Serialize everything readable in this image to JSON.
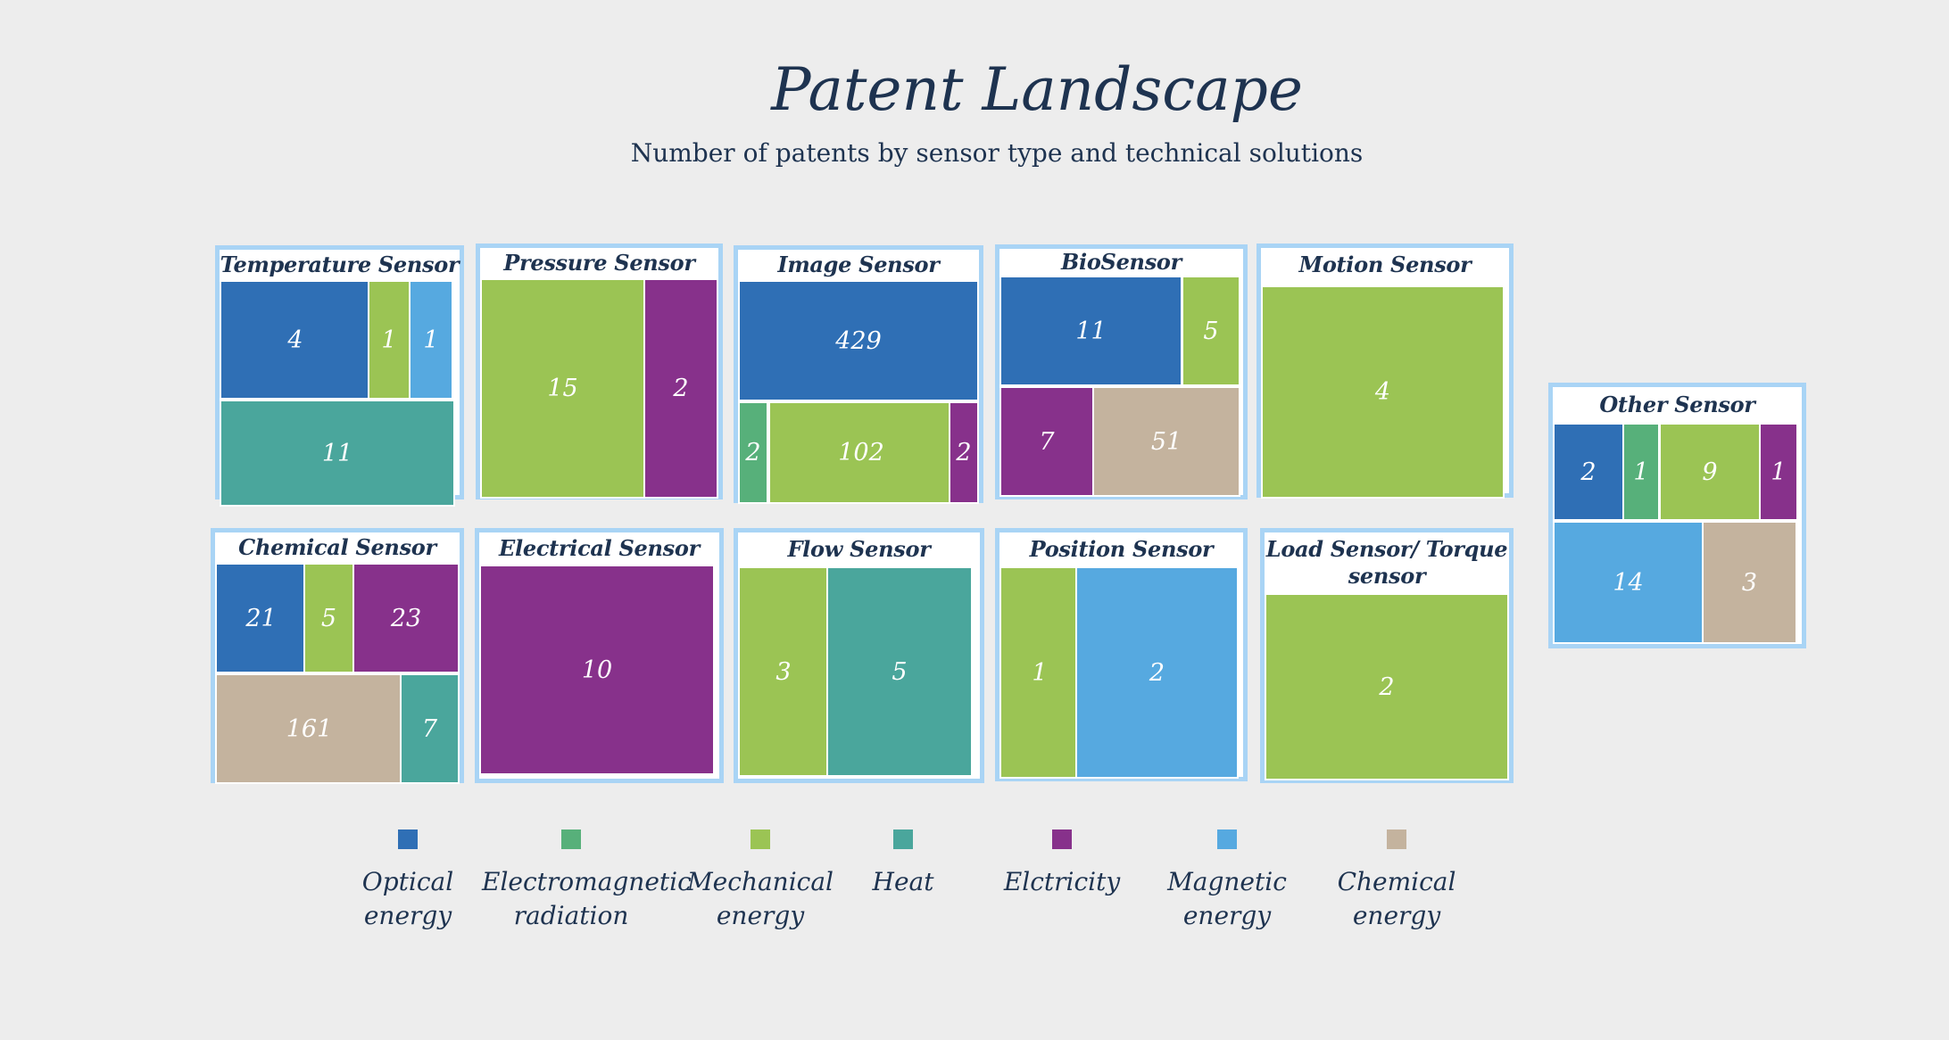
{
  "chart_data": {
    "type": "treemap",
    "title": "Patent Landscape",
    "subtitle": "Number of patents by sensor type and technical solutions",
    "colors": {
      "optical": "#2f6fb5",
      "electromagnetic": "#57b07a",
      "mechanical": "#9bc454",
      "heat": "#4aa69c",
      "electricity": "#87318b",
      "magnetic": "#56a9e0",
      "chemical": "#c4b39e"
    },
    "legend": [
      {
        "key": "optical",
        "label": "Optical\nenergy"
      },
      {
        "key": "electromagnetic",
        "label": "Electromagnetic\nradiation"
      },
      {
        "key": "mechanical",
        "label": "Mechanical\nenergy"
      },
      {
        "key": "heat",
        "label": "Heat"
      },
      {
        "key": "electricity",
        "label": "Elctricity"
      },
      {
        "key": "magnetic",
        "label": "Magnetic\nenergy"
      },
      {
        "key": "chemical",
        "label": "Chemical\nenergy"
      }
    ],
    "panels": [
      {
        "title": "Temperature Sensor",
        "cells": [
          {
            "cat": "optical",
            "value": 4
          },
          {
            "cat": "mechanical",
            "value": 1
          },
          {
            "cat": "magnetic",
            "value": 1
          },
          {
            "cat": "heat",
            "value": 11
          }
        ]
      },
      {
        "title": "Pressure Sensor",
        "cells": [
          {
            "cat": "mechanical",
            "value": 15
          },
          {
            "cat": "electricity",
            "value": 2
          }
        ]
      },
      {
        "title": "Image Sensor",
        "cells": [
          {
            "cat": "optical",
            "value": 429
          },
          {
            "cat": "electromagnetic",
            "value": 2
          },
          {
            "cat": "mechanical",
            "value": 102
          },
          {
            "cat": "electricity",
            "value": 2
          }
        ]
      },
      {
        "title": "BioSensor",
        "cells": [
          {
            "cat": "optical",
            "value": 11
          },
          {
            "cat": "mechanical",
            "value": 5
          },
          {
            "cat": "electricity",
            "value": 7
          },
          {
            "cat": "chemical",
            "value": 51
          }
        ]
      },
      {
        "title": "Motion Sensor",
        "cells": [
          {
            "cat": "mechanical",
            "value": 4
          }
        ]
      },
      {
        "title": "Chemical Sensor",
        "cells": [
          {
            "cat": "optical",
            "value": 21
          },
          {
            "cat": "mechanical",
            "value": 5
          },
          {
            "cat": "electricity",
            "value": 23
          },
          {
            "cat": "chemical",
            "value": 161
          },
          {
            "cat": "heat",
            "value": 7
          }
        ]
      },
      {
        "title": "Electrical  Sensor",
        "cells": [
          {
            "cat": "electricity",
            "value": 10
          }
        ]
      },
      {
        "title": "Flow Sensor",
        "cells": [
          {
            "cat": "mechanical",
            "value": 3
          },
          {
            "cat": "heat",
            "value": 5
          }
        ]
      },
      {
        "title": "Position Sensor",
        "cells": [
          {
            "cat": "mechanical",
            "value": 1
          },
          {
            "cat": "magnetic",
            "value": 2
          }
        ]
      },
      {
        "title": "Load  Sensor/ Torque sensor",
        "cells": [
          {
            "cat": "mechanical",
            "value": 2
          }
        ]
      },
      {
        "title": "Other Sensor",
        "cells": [
          {
            "cat": "optical",
            "value": 2
          },
          {
            "cat": "electromagnetic",
            "value": 1
          },
          {
            "cat": "mechanical",
            "value": 9
          },
          {
            "cat": "electricity",
            "value": 1
          },
          {
            "cat": "magnetic",
            "value": 14
          },
          {
            "cat": "chemical",
            "value": 3
          }
        ]
      }
    ]
  }
}
